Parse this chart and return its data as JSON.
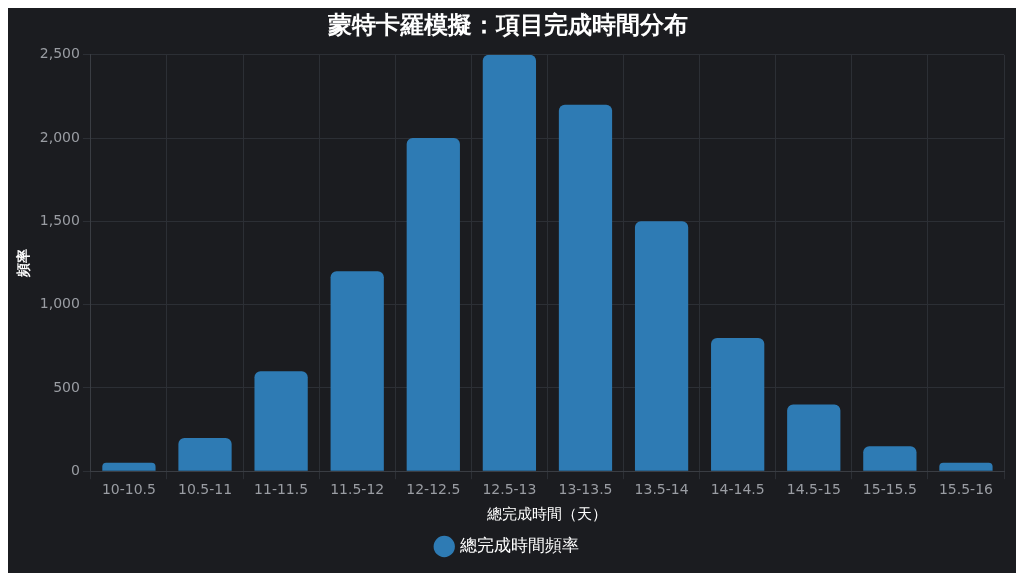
{
  "chart_data": {
    "type": "bar",
    "title": "蒙特卡羅模擬：項目完成時間分布",
    "xlabel": "總完成時間（天）",
    "ylabel": "頻率",
    "categories": [
      "10-10.5",
      "10.5-11",
      "11-11.5",
      "11.5-12",
      "12-12.5",
      "12.5-13",
      "13-13.5",
      "13.5-14",
      "14-14.5",
      "14.5-15",
      "15-15.5",
      "15.5-16"
    ],
    "series": [
      {
        "name": "總完成時間頻率",
        "color": "#2e7bb4",
        "values": [
          50,
          200,
          600,
          1200,
          2000,
          2500,
          2200,
          1500,
          800,
          400,
          150,
          50
        ]
      }
    ],
    "ylim": [
      0,
      2500
    ],
    "yticks": [
      {
        "value": 0,
        "label": "0"
      },
      {
        "value": 500,
        "label": "500"
      },
      {
        "value": 1000,
        "label": "1,000"
      },
      {
        "value": 1500,
        "label": "1,500"
      },
      {
        "value": 2000,
        "label": "2,000"
      },
      {
        "value": 2500,
        "label": "2,500"
      }
    ],
    "grid": true,
    "legend": "bottom"
  }
}
